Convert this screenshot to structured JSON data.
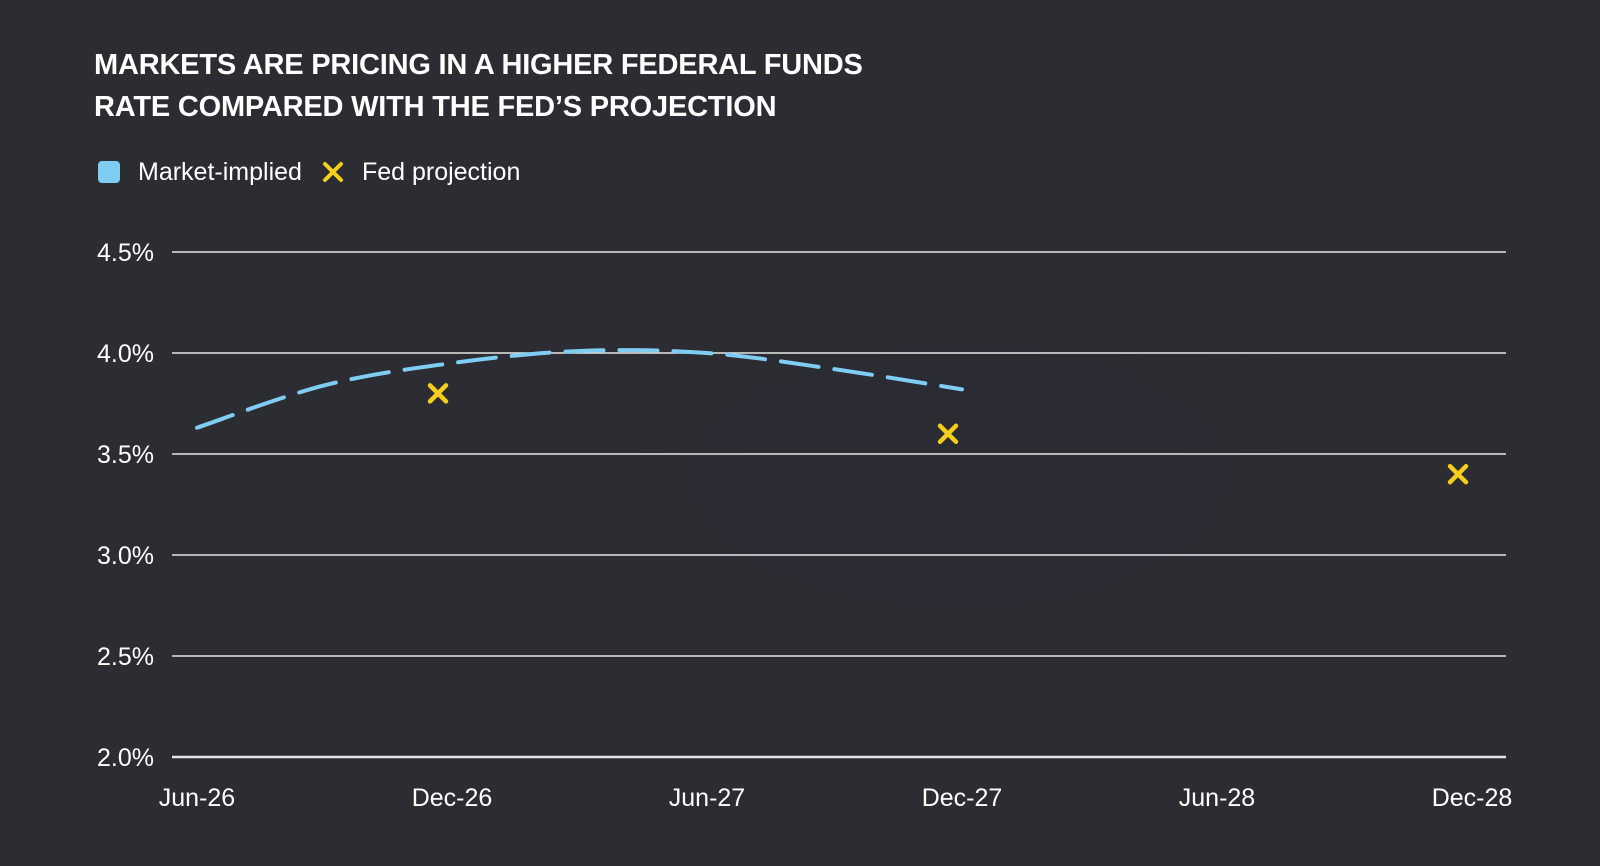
{
  "colors": {
    "background": "#2b2d32",
    "gridline": "#e6e6e6",
    "market_implied": "#7fcdf2",
    "fed_projection": "#f5cf1c",
    "text": "#ffffff"
  },
  "chart_data": {
    "type": "line",
    "title": "MARKETS ARE PRICING IN A HIGHER FEDERAL FUNDS RATE COMPARED WITH THE FED’S PROJECTION",
    "title_lines": [
      "MARKETS ARE PRICING IN A HIGHER FEDERAL FUNDS",
      "RATE COMPARED WITH THE FED’S PROJECTION"
    ],
    "xlabel": "",
    "ylabel": "",
    "legend_position": "top-left",
    "grid": true,
    "x_ticks": [
      "Jun-26",
      "Dec-26",
      "Jun-27",
      "Dec-27",
      "Jun-28",
      "Dec-28"
    ],
    "y_ticks": [
      {
        "value": 4.5,
        "label": "4.5%"
      },
      {
        "value": 4.0,
        "label": "4.0%"
      },
      {
        "value": 3.5,
        "label": "3.5%"
      },
      {
        "value": 3.0,
        "label": "3.0%"
      },
      {
        "value": 2.5,
        "label": "2.5%"
      },
      {
        "value": 2.0,
        "label": "2.0%"
      }
    ],
    "ylim": [
      2.0,
      4.5
    ],
    "xlim": [
      "Jun-26",
      "Dec-28"
    ],
    "series": [
      {
        "name": "Market-implied",
        "style": "dashed-line",
        "color": "#7fcdf2",
        "points": [
          {
            "x": "Jun-26",
            "y": 3.63
          },
          {
            "x": "Sep-26",
            "y": 3.84
          },
          {
            "x": "Dec-26",
            "y": 3.95
          },
          {
            "x": "Mar-27",
            "y": 4.01
          },
          {
            "x": "Jun-27",
            "y": 4.0
          },
          {
            "x": "Sep-27",
            "y": 3.92
          },
          {
            "x": "Dec-27",
            "y": 3.82
          }
        ]
      },
      {
        "name": "Fed projection",
        "style": "x-marker",
        "color": "#f5cf1c",
        "points": [
          {
            "x": "Dec-26",
            "y": 3.8
          },
          {
            "x": "Dec-27",
            "y": 3.6
          },
          {
            "x": "Dec-28",
            "y": 3.4
          }
        ]
      }
    ]
  }
}
